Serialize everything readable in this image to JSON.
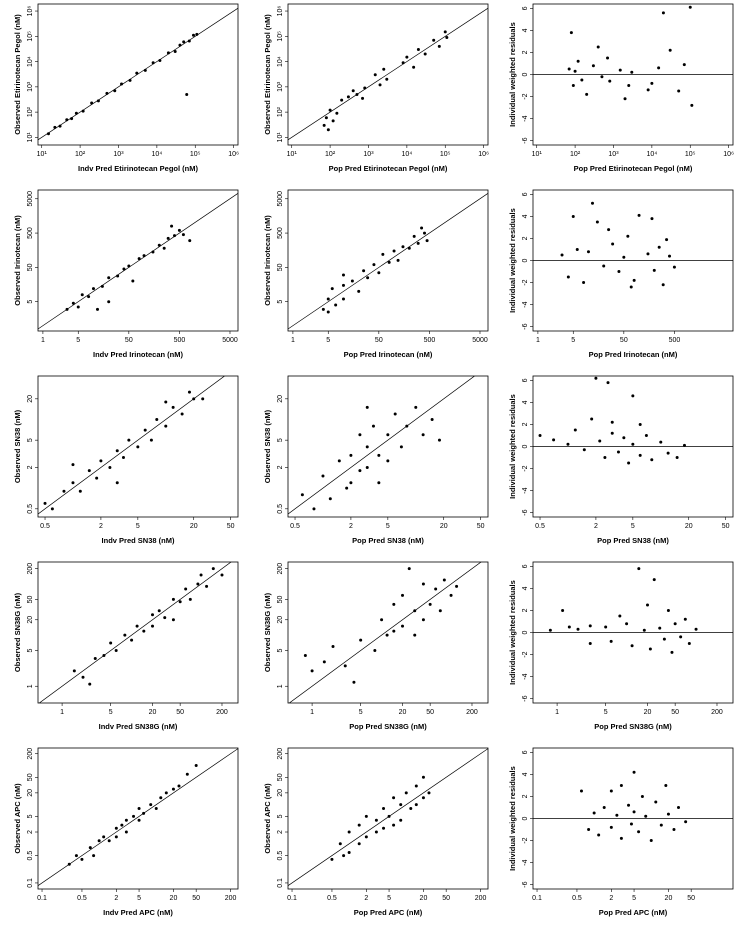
{
  "chart_data": [
    {
      "type": "scatter",
      "xlabel": "Indv Pred Etirinotecan Pegol (nM)",
      "ylabel": "Observed Etirinotecan Pegol (nM)",
      "color": "#000000",
      "log_x": true,
      "log_y": true,
      "reference": "identity",
      "xlim": [
        8,
        1300000
      ],
      "ylim": [
        5,
        1900000
      ],
      "xticks": [
        {
          "value": 10,
          "label": "10¹"
        },
        {
          "value": 100,
          "label": "10²"
        },
        {
          "value": 1000,
          "label": "10³"
        },
        {
          "value": 10000,
          "label": "10⁴"
        },
        {
          "value": 100000,
          "label": "10⁵"
        },
        {
          "value": 1000000,
          "label": "10⁶"
        }
      ],
      "yticks": [
        {
          "value": 10,
          "label": "10¹"
        },
        {
          "value": 100,
          "label": "10²"
        },
        {
          "value": 1000,
          "label": "10³"
        },
        {
          "value": 10000,
          "label": "10⁴"
        },
        {
          "value": 100000,
          "label": "10⁵"
        },
        {
          "value": 1000000,
          "label": "10⁶"
        }
      ],
      "x": [
        15,
        22,
        30,
        45,
        60,
        80,
        120,
        200,
        300,
        500,
        800,
        1200,
        2000,
        3000,
        5000,
        8000,
        12000,
        20000,
        30000,
        50000,
        70000,
        90000,
        110000,
        60000,
        40000
      ],
      "values": [
        14,
        25,
        28,
        50,
        55,
        90,
        110,
        230,
        280,
        550,
        700,
        1300,
        1800,
        3500,
        4500,
        9000,
        11000,
        22000,
        25000,
        60000,
        65000,
        110000,
        120000,
        500,
        45000
      ]
    },
    {
      "type": "scatter",
      "xlabel": "Pop Pred Etirinotecan Pegol (nM)",
      "ylabel": "Observed Etirinotecan Pegol (nM)",
      "color": "#000000",
      "log_x": true,
      "log_y": true,
      "reference": "identity",
      "xlim": [
        8,
        1300000
      ],
      "ylim": [
        5,
        1900000
      ],
      "xticks": [
        {
          "value": 10,
          "label": "10¹"
        },
        {
          "value": 100,
          "label": "10²"
        },
        {
          "value": 1000,
          "label": "10³"
        },
        {
          "value": 10000,
          "label": "10⁴"
        },
        {
          "value": 100000,
          "label": "10⁵"
        },
        {
          "value": 1000000,
          "label": "10⁶"
        }
      ],
      "yticks": [
        {
          "value": 10,
          "label": "10¹"
        },
        {
          "value": 100,
          "label": "10²"
        },
        {
          "value": 1000,
          "label": "10³"
        },
        {
          "value": 10000,
          "label": "10⁴"
        },
        {
          "value": 100000,
          "label": "10⁵"
        },
        {
          "value": 1000000,
          "label": "10⁶"
        }
      ],
      "x": [
        70,
        80,
        90,
        100,
        120,
        150,
        200,
        300,
        400,
        500,
        700,
        800,
        1500,
        2000,
        2500,
        3000,
        8000,
        10000,
        15000,
        20000,
        30000,
        50000,
        70000,
        100000,
        110000
      ],
      "values": [
        30,
        60,
        20,
        120,
        45,
        90,
        300,
        400,
        700,
        500,
        350,
        900,
        3000,
        1200,
        5000,
        2000,
        9000,
        15000,
        6000,
        30000,
        20000,
        70000,
        40000,
        150000,
        90000
      ]
    },
    {
      "type": "scatter",
      "xlabel": "Pop Pred Etirinotecan Pegol (nM)",
      "ylabel": "Individual weighted residuals",
      "color": "#000000",
      "log_x": true,
      "log_y": false,
      "hline": 0,
      "xlim": [
        8,
        1300000
      ],
      "ylim": [
        -6.4,
        6.4
      ],
      "xticks": [
        {
          "value": 10,
          "label": "10¹"
        },
        {
          "value": 100,
          "label": "10²"
        },
        {
          "value": 1000,
          "label": "10³"
        },
        {
          "value": 10000,
          "label": "10⁴"
        },
        {
          "value": 100000,
          "label": "10⁵"
        },
        {
          "value": 1000000,
          "label": "10⁶"
        }
      ],
      "yticks": [
        -6,
        -4,
        -2,
        0,
        2,
        4,
        6
      ],
      "x": [
        70,
        80,
        90,
        100,
        120,
        150,
        200,
        300,
        400,
        500,
        700,
        800,
        1500,
        2000,
        2500,
        3000,
        8000,
        10000,
        15000,
        20000,
        30000,
        50000,
        70000,
        100000,
        110000
      ],
      "values": [
        0.5,
        3.8,
        -1,
        0.3,
        1.2,
        -0.5,
        -1.8,
        0.8,
        2.5,
        -0.2,
        1.5,
        -0.6,
        0.4,
        -2.2,
        -1.0,
        0.2,
        -1.4,
        -0.8,
        0.6,
        5.6,
        2.2,
        -1.5,
        0.9,
        6.1,
        -2.8
      ]
    },
    {
      "type": "scatter",
      "xlabel": "Indv Pred Irinotecan (nM)",
      "ylabel": "Observed Irinotecan (nM)",
      "color": "#000000",
      "log_x": true,
      "log_y": true,
      "reference": "identity",
      "xlim": [
        0.8,
        7200
      ],
      "ylim": [
        0.7,
        9000
      ],
      "xticks": [
        1,
        5,
        50,
        500,
        5000
      ],
      "yticks": [
        5,
        50,
        500,
        5000
      ],
      "x": [
        3,
        4,
        5,
        6,
        8,
        10,
        15,
        20,
        30,
        40,
        50,
        60,
        80,
        100,
        150,
        200,
        250,
        300,
        400,
        500,
        600,
        800,
        20,
        12,
        350
      ],
      "values": [
        3,
        4.5,
        3.5,
        8,
        7,
        12,
        14,
        25,
        28,
        45,
        55,
        20,
        90,
        110,
        140,
        220,
        180,
        350,
        420,
        600,
        450,
        300,
        5,
        3,
        800
      ]
    },
    {
      "type": "scatter",
      "xlabel": "Pop Pred Irinotecan (nM)",
      "ylabel": "Observed Irinotecan (nM)",
      "color": "#000000",
      "log_x": true,
      "log_y": true,
      "reference": "identity",
      "xlim": [
        0.8,
        7200
      ],
      "ylim": [
        0.7,
        9000
      ],
      "xticks": [
        1,
        5,
        50,
        500,
        5000
      ],
      "yticks": [
        5,
        50,
        500,
        5000
      ],
      "x": [
        4,
        5,
        5,
        6,
        7,
        10,
        10,
        15,
        20,
        25,
        30,
        40,
        50,
        60,
        80,
        100,
        120,
        150,
        200,
        250,
        300,
        400,
        450,
        350,
        10
      ],
      "values": [
        3,
        6,
        2.5,
        12,
        4,
        15,
        6,
        20,
        10,
        40,
        25,
        60,
        35,
        120,
        70,
        150,
        80,
        200,
        180,
        400,
        250,
        500,
        300,
        700,
        30
      ]
    },
    {
      "type": "scatter",
      "xlabel": "Pop Pred Irinotecan (nM)",
      "ylabel": "Individual weighted residuals",
      "color": "#000000",
      "log_x": true,
      "log_y": false,
      "hline": 0,
      "xlim": [
        0.8,
        7200
      ],
      "ylim": [
        -6.4,
        6.4
      ],
      "xticks": [
        1,
        5,
        50,
        500
      ],
      "yticks": [
        -6,
        -4,
        -2,
        0,
        2,
        4,
        6
      ],
      "x": [
        3,
        4,
        5,
        6,
        8,
        10,
        15,
        20,
        30,
        40,
        50,
        60,
        80,
        100,
        150,
        200,
        250,
        300,
        400,
        500,
        12,
        25,
        180,
        350,
        70
      ],
      "values": [
        0.5,
        -1.5,
        4,
        1,
        -2,
        0.8,
        3.5,
        -0.5,
        1.5,
        -1,
        0.3,
        2.2,
        -1.8,
        4.1,
        0.6,
        -0.9,
        1.2,
        -2.2,
        0.4,
        -0.6,
        5.2,
        2.8,
        3.8,
        1.9,
        -2.4
      ]
    },
    {
      "type": "scatter",
      "xlabel": "Indv Pred SN38 (nM)",
      "ylabel": "Observed SN38 (nM)",
      "color": "#000000",
      "log_x": true,
      "log_y": true,
      "reference": "identity",
      "xlim": [
        0.42,
        60
      ],
      "ylim": [
        0.38,
        43
      ],
      "xticks": [
        0.5,
        2,
        5,
        20,
        50
      ],
      "yticks": [
        0.5,
        2,
        5,
        20
      ],
      "x": [
        0.5,
        0.6,
        0.8,
        1,
        1.2,
        1.5,
        1.8,
        2,
        2.5,
        3,
        3.5,
        4,
        5,
        6,
        7,
        8,
        10,
        12,
        15,
        18,
        20,
        25,
        3,
        1,
        10
      ],
      "values": [
        0.6,
        0.5,
        0.9,
        1.2,
        0.9,
        1.8,
        1.4,
        2.5,
        2,
        3.5,
        2.8,
        5,
        4,
        7,
        5,
        10,
        8,
        15,
        12,
        25,
        20,
        20,
        1.2,
        2.2,
        18
      ]
    },
    {
      "type": "scatter",
      "xlabel": "Pop Pred SN38 (nM)",
      "ylabel": "Observed SN38 (nM)",
      "color": "#000000",
      "log_x": true,
      "log_y": true,
      "reference": "identity",
      "xlim": [
        0.42,
        60
      ],
      "ylim": [
        0.38,
        43
      ],
      "xticks": [
        0.5,
        2,
        5,
        20,
        50
      ],
      "yticks": [
        0.5,
        2,
        5,
        20
      ],
      "x": [
        0.6,
        0.8,
        1,
        1.2,
        1.5,
        1.8,
        2,
        2,
        2.5,
        2.5,
        3,
        3,
        3.5,
        4,
        4,
        5,
        5,
        6,
        7,
        8,
        10,
        12,
        15,
        18,
        3
      ],
      "values": [
        0.8,
        0.5,
        1.5,
        0.7,
        2.5,
        1,
        3,
        1.2,
        6,
        1.8,
        4,
        2,
        8,
        3,
        1.2,
        6,
        2.5,
        12,
        4,
        8,
        15,
        6,
        10,
        5,
        15
      ]
    },
    {
      "type": "scatter",
      "xlabel": "Pop Pred SN38 (nM)",
      "ylabel": "Individual weighted residuals",
      "color": "#000000",
      "log_x": true,
      "log_y": false,
      "hline": 0,
      "xlim": [
        0.42,
        60
      ],
      "ylim": [
        -6.4,
        6.4
      ],
      "xticks": [
        0.5,
        2,
        5,
        20,
        50
      ],
      "yticks": [
        -6,
        -4,
        -2,
        0,
        2,
        4,
        6
      ],
      "x": [
        0.5,
        0.7,
        1,
        1.2,
        1.5,
        1.8,
        2,
        2.2,
        2.5,
        2.7,
        3,
        3.5,
        4,
        4.5,
        5,
        5,
        6,
        7,
        8,
        10,
        12,
        15,
        18,
        3,
        6
      ],
      "values": [
        1,
        0.6,
        0.2,
        1.5,
        -0.3,
        2.5,
        6.2,
        0.5,
        -1,
        5.8,
        1.2,
        -0.5,
        0.8,
        -1.5,
        4.6,
        0.2,
        -0.8,
        1.0,
        -1.2,
        0.4,
        -0.6,
        -1.0,
        0.1,
        2.2,
        2.0
      ]
    },
    {
      "type": "scatter",
      "xlabel": "Indv Pred SN38G (nM)",
      "ylabel": "Observed SN38G (nM)",
      "color": "#000000",
      "log_x": true,
      "log_y": true,
      "reference": "identity",
      "xlim": [
        0.45,
        340
      ],
      "ylim": [
        0.47,
        270
      ],
      "xticks": [
        1,
        5,
        20,
        50,
        200
      ],
      "yticks": [
        1,
        5,
        20,
        50,
        200
      ],
      "x": [
        1.5,
        2,
        3,
        4,
        5,
        6,
        8,
        10,
        12,
        15,
        20,
        20,
        25,
        30,
        40,
        50,
        60,
        70,
        90,
        100,
        120,
        150,
        200,
        2.5,
        40
      ],
      "values": [
        2,
        1.5,
        3.5,
        4,
        7,
        5,
        10,
        8,
        15,
        12,
        25,
        15,
        30,
        22,
        50,
        45,
        80,
        50,
        100,
        150,
        90,
        200,
        150,
        1.1,
        20
      ]
    },
    {
      "type": "scatter",
      "xlabel": "Pop Pred SN38G (nM)",
      "ylabel": "Observed SN38G (nM)",
      "color": "#000000",
      "log_x": true,
      "log_y": true,
      "reference": "identity",
      "xlim": [
        0.45,
        340
      ],
      "ylim": [
        0.47,
        270
      ],
      "xticks": [
        1,
        5,
        20,
        50,
        200
      ],
      "yticks": [
        1,
        5,
        20,
        50,
        200
      ],
      "x": [
        0.8,
        1,
        1.5,
        2,
        3,
        4,
        5,
        8,
        10,
        12,
        15,
        15,
        20,
        20,
        25,
        30,
        30,
        40,
        40,
        50,
        60,
        70,
        80,
        100,
        120
      ],
      "values": [
        4,
        2,
        3,
        6,
        2.5,
        1.2,
        8,
        5,
        20,
        10,
        40,
        12,
        60,
        15,
        200,
        30,
        10,
        100,
        20,
        40,
        80,
        30,
        120,
        60,
        90
      ]
    },
    {
      "type": "scatter",
      "xlabel": "Pop Pred SN38G (nM)",
      "ylabel": "Individual weighted residuals",
      "color": "#000000",
      "log_x": true,
      "log_y": false,
      "hline": 0,
      "xlim": [
        0.45,
        340
      ],
      "ylim": [
        -6.4,
        6.4
      ],
      "xticks": [
        1,
        5,
        20,
        50,
        200
      ],
      "yticks": [
        -6,
        -4,
        -2,
        0,
        2,
        4,
        6
      ],
      "x": [
        0.8,
        1.2,
        1.5,
        2,
        3,
        5,
        6,
        8,
        10,
        12,
        15,
        18,
        20,
        22,
        25,
        30,
        35,
        40,
        45,
        50,
        60,
        70,
        80,
        100,
        3
      ],
      "values": [
        0.2,
        2,
        0.5,
        0.3,
        -1,
        0.5,
        -0.8,
        1.5,
        0.8,
        -1.2,
        5.8,
        0.2,
        2.5,
        -1.5,
        4.8,
        0.4,
        -0.6,
        2.0,
        -1.8,
        0.8,
        -0.4,
        1.2,
        -1.0,
        0.3,
        0.6
      ]
    },
    {
      "type": "scatter",
      "xlabel": "Indv Pred APC (nM)",
      "ylabel": "Observed APC (nM)",
      "color": "#000000",
      "log_x": true,
      "log_y": true,
      "reference": "identity",
      "xlim": [
        0.085,
        270
      ],
      "ylim": [
        0.07,
        280
      ],
      "xticks": [
        0.1,
        0.5,
        2,
        5,
        20,
        50,
        200
      ],
      "yticks": [
        0.1,
        0.5,
        2,
        5,
        20,
        50,
        200
      ],
      "x": [
        0.3,
        0.4,
        0.5,
        0.7,
        0.8,
        1,
        1.2,
        1.5,
        2,
        2,
        2.5,
        3,
        3,
        4,
        5,
        5,
        6,
        8,
        10,
        12,
        15,
        20,
        25,
        35,
        50
      ],
      "values": [
        0.3,
        0.5,
        0.4,
        0.8,
        0.5,
        1.2,
        1.5,
        1.2,
        2.5,
        1.5,
        3,
        4,
        2,
        5,
        4,
        8,
        6,
        10,
        8,
        15,
        20,
        25,
        30,
        60,
        100
      ]
    },
    {
      "type": "scatter",
      "xlabel": "Pop Pred APC (nM)",
      "ylabel": "Observed APC (nM)",
      "color": "#000000",
      "log_x": true,
      "log_y": true,
      "reference": "identity",
      "xlim": [
        0.085,
        270
      ],
      "ylim": [
        0.07,
        280
      ],
      "xticks": [
        0.1,
        0.5,
        2,
        5,
        20,
        50,
        200
      ],
      "yticks": [
        0.1,
        0.5,
        2,
        5,
        20,
        50,
        200
      ],
      "x": [
        0.5,
        0.7,
        0.8,
        1,
        1,
        1.5,
        1.5,
        2,
        2,
        3,
        3,
        4,
        4,
        5,
        6,
        6,
        8,
        8,
        10,
        12,
        15,
        15,
        20,
        20,
        25
      ],
      "values": [
        0.4,
        1,
        0.5,
        2,
        0.6,
        3,
        1,
        5,
        1.5,
        4,
        2,
        8,
        2.5,
        5,
        15,
        3,
        10,
        4,
        20,
        8,
        30,
        10,
        50,
        15,
        20
      ]
    },
    {
      "type": "scatter",
      "xlabel": "Pop Pred APC (nM)",
      "ylabel": "Individual weighted residuals",
      "color": "#000000",
      "log_x": true,
      "log_y": false,
      "hline": 0,
      "xlim": [
        0.085,
        270
      ],
      "ylim": [
        -6.4,
        6.4
      ],
      "xticks": [
        0.1,
        0.5,
        2,
        5,
        20,
        50
      ],
      "yticks": [
        -6,
        -4,
        -2,
        0,
        2,
        4,
        6
      ],
      "x": [
        0.6,
        0.8,
        1,
        1.2,
        1.5,
        2,
        2,
        2.5,
        3,
        3,
        4,
        4.5,
        5,
        5,
        6,
        7,
        8,
        10,
        12,
        15,
        18,
        20,
        25,
        30,
        40
      ],
      "values": [
        2.5,
        -1,
        0.5,
        -1.5,
        1.0,
        2.5,
        -0.8,
        0.3,
        3.0,
        -1.8,
        1.2,
        -0.5,
        4.2,
        0.6,
        -1.2,
        2.0,
        0.2,
        -2.0,
        1.5,
        -0.6,
        3.0,
        0.4,
        -1.0,
        1.0,
        -0.3
      ]
    }
  ]
}
